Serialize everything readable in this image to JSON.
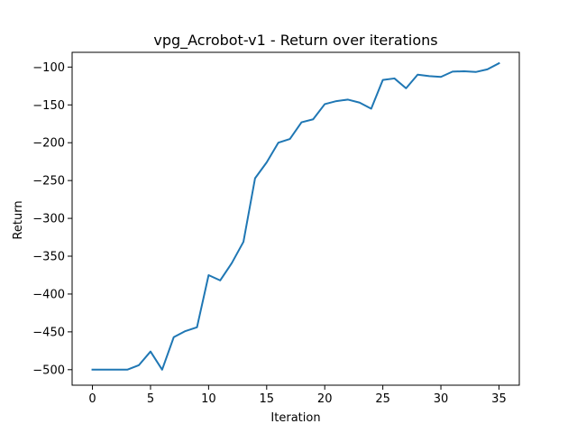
{
  "chart_data": {
    "type": "line",
    "title": "vpg_Acrobot-v1 - Return over iterations",
    "xlabel": "Iteration",
    "ylabel": "Return",
    "xlim": [
      -1.75,
      36.75
    ],
    "ylim": [
      -520.5,
      -80.5
    ],
    "xticks": [
      0,
      5,
      10,
      15,
      20,
      25,
      30,
      35
    ],
    "yticks": [
      -500,
      -450,
      -400,
      -350,
      -300,
      -250,
      -200,
      -150,
      -100
    ],
    "grid": false,
    "legend": "none",
    "series": [
      {
        "color": "#1f77b4",
        "x": [
          0,
          1,
          2,
          3,
          4,
          5,
          6,
          7,
          8,
          9,
          10,
          11,
          12,
          13,
          14,
          15,
          16,
          17,
          18,
          19,
          20,
          21,
          22,
          23,
          24,
          25,
          26,
          27,
          28,
          29,
          30,
          31,
          32,
          33,
          34,
          35
        ],
        "y": [
          -500,
          -500,
          -500,
          -500,
          -494,
          -476,
          -500,
          -457,
          -449,
          -444,
          -375,
          -382,
          -359,
          -331,
          -247,
          -226,
          -200,
          -195,
          -173,
          -169,
          -149,
          -145,
          -143,
          -147,
          -155,
          -117,
          -115,
          -128,
          -110,
          -112,
          -113,
          -106,
          -105.5,
          -106.5,
          -103,
          -95
        ]
      }
    ]
  }
}
